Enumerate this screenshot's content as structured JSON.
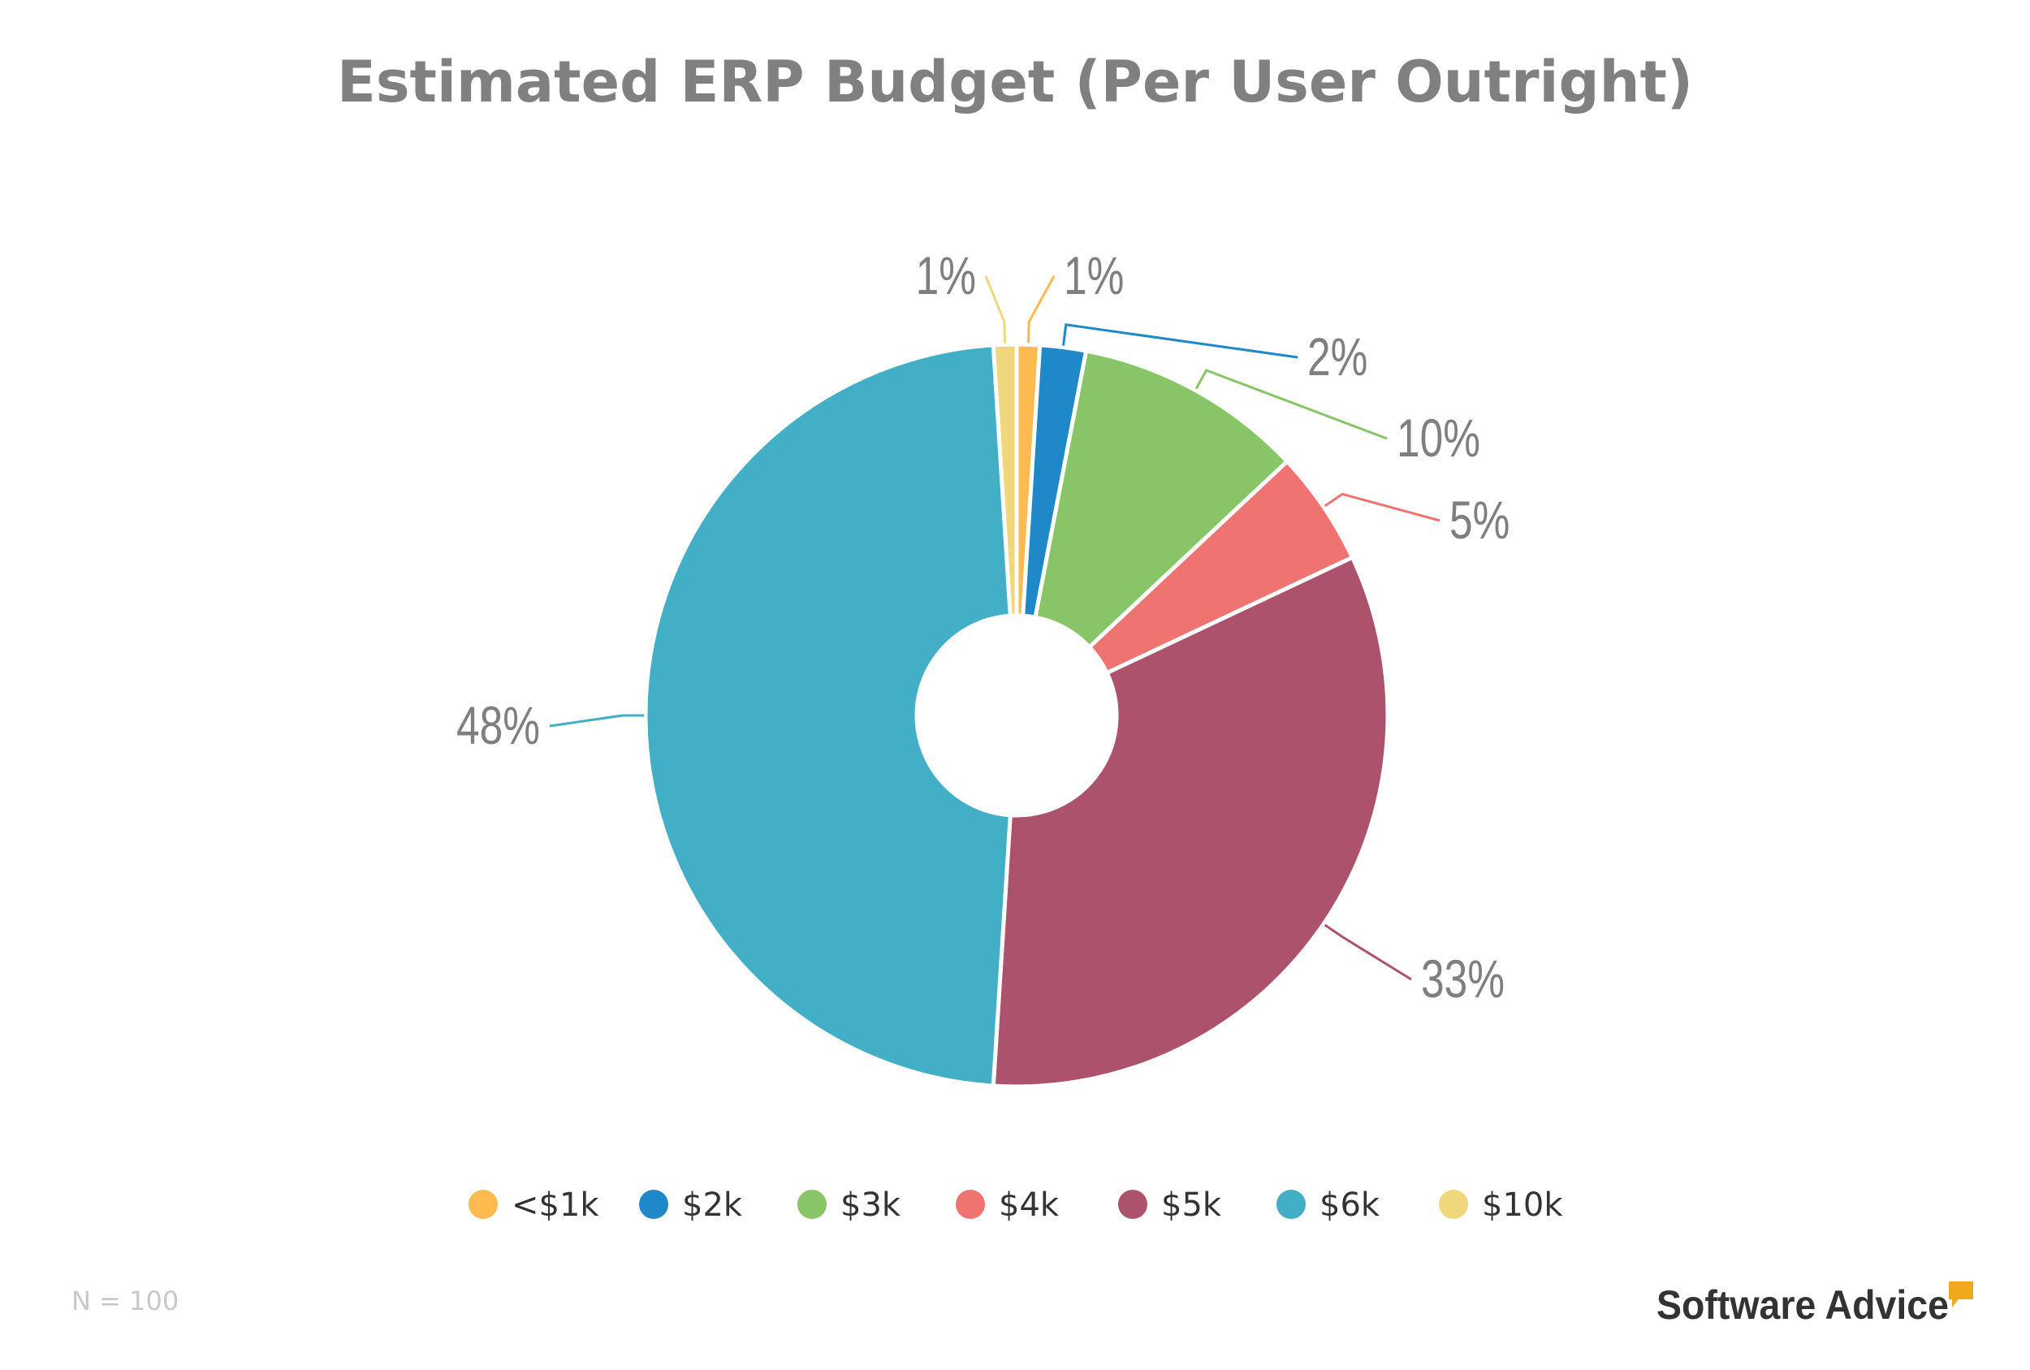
{
  "chart_data": {
    "type": "pie",
    "title": "Estimated ERP Budget (Per User Outright)",
    "donut": true,
    "start": "top, clockwise",
    "categories": [
      "<$1k",
      "$2k",
      "$3k",
      "$4k",
      "$5k",
      "$6k",
      "$10k"
    ],
    "values": [
      1,
      2,
      10,
      5,
      33,
      48,
      1
    ],
    "data_labels": [
      "1%",
      "2%",
      "10%",
      "5%",
      "33%",
      "48%",
      "1%"
    ],
    "colors": [
      "#FDBA4F",
      "#1F88C9",
      "#88C569",
      "#EF7471",
      "#AC526D",
      "#42AFC7",
      "#F0D77B"
    ],
    "legend_position": "bottom"
  },
  "footnote": "N = 100",
  "brand": {
    "name": "Software Advice",
    "accent": "#F0A81C"
  }
}
